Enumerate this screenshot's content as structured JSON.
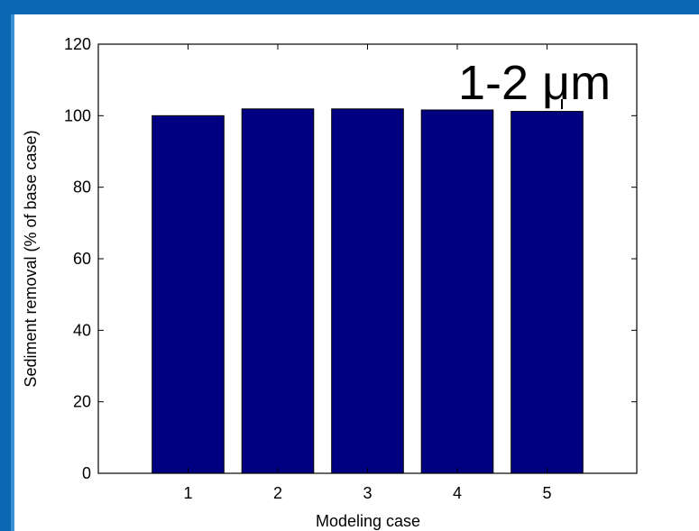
{
  "colors": {
    "bar": "#000080",
    "frame": "#0a67b4",
    "frame_inner": "#3b8fd4"
  },
  "chart_data": {
    "type": "bar",
    "categories": [
      "1",
      "2",
      "3",
      "4",
      "5"
    ],
    "values": [
      100,
      101.9,
      101.9,
      101.6,
      101.2
    ],
    "xlabel": "Modeling case",
    "ylabel": "Sediment removal (% of base case)",
    "ylim": [
      0,
      120
    ],
    "yticks": [
      "0",
      "20",
      "40",
      "60",
      "80",
      "100",
      "120"
    ],
    "annotation": "1-2 μm",
    "grid": false,
    "legend": "none"
  }
}
